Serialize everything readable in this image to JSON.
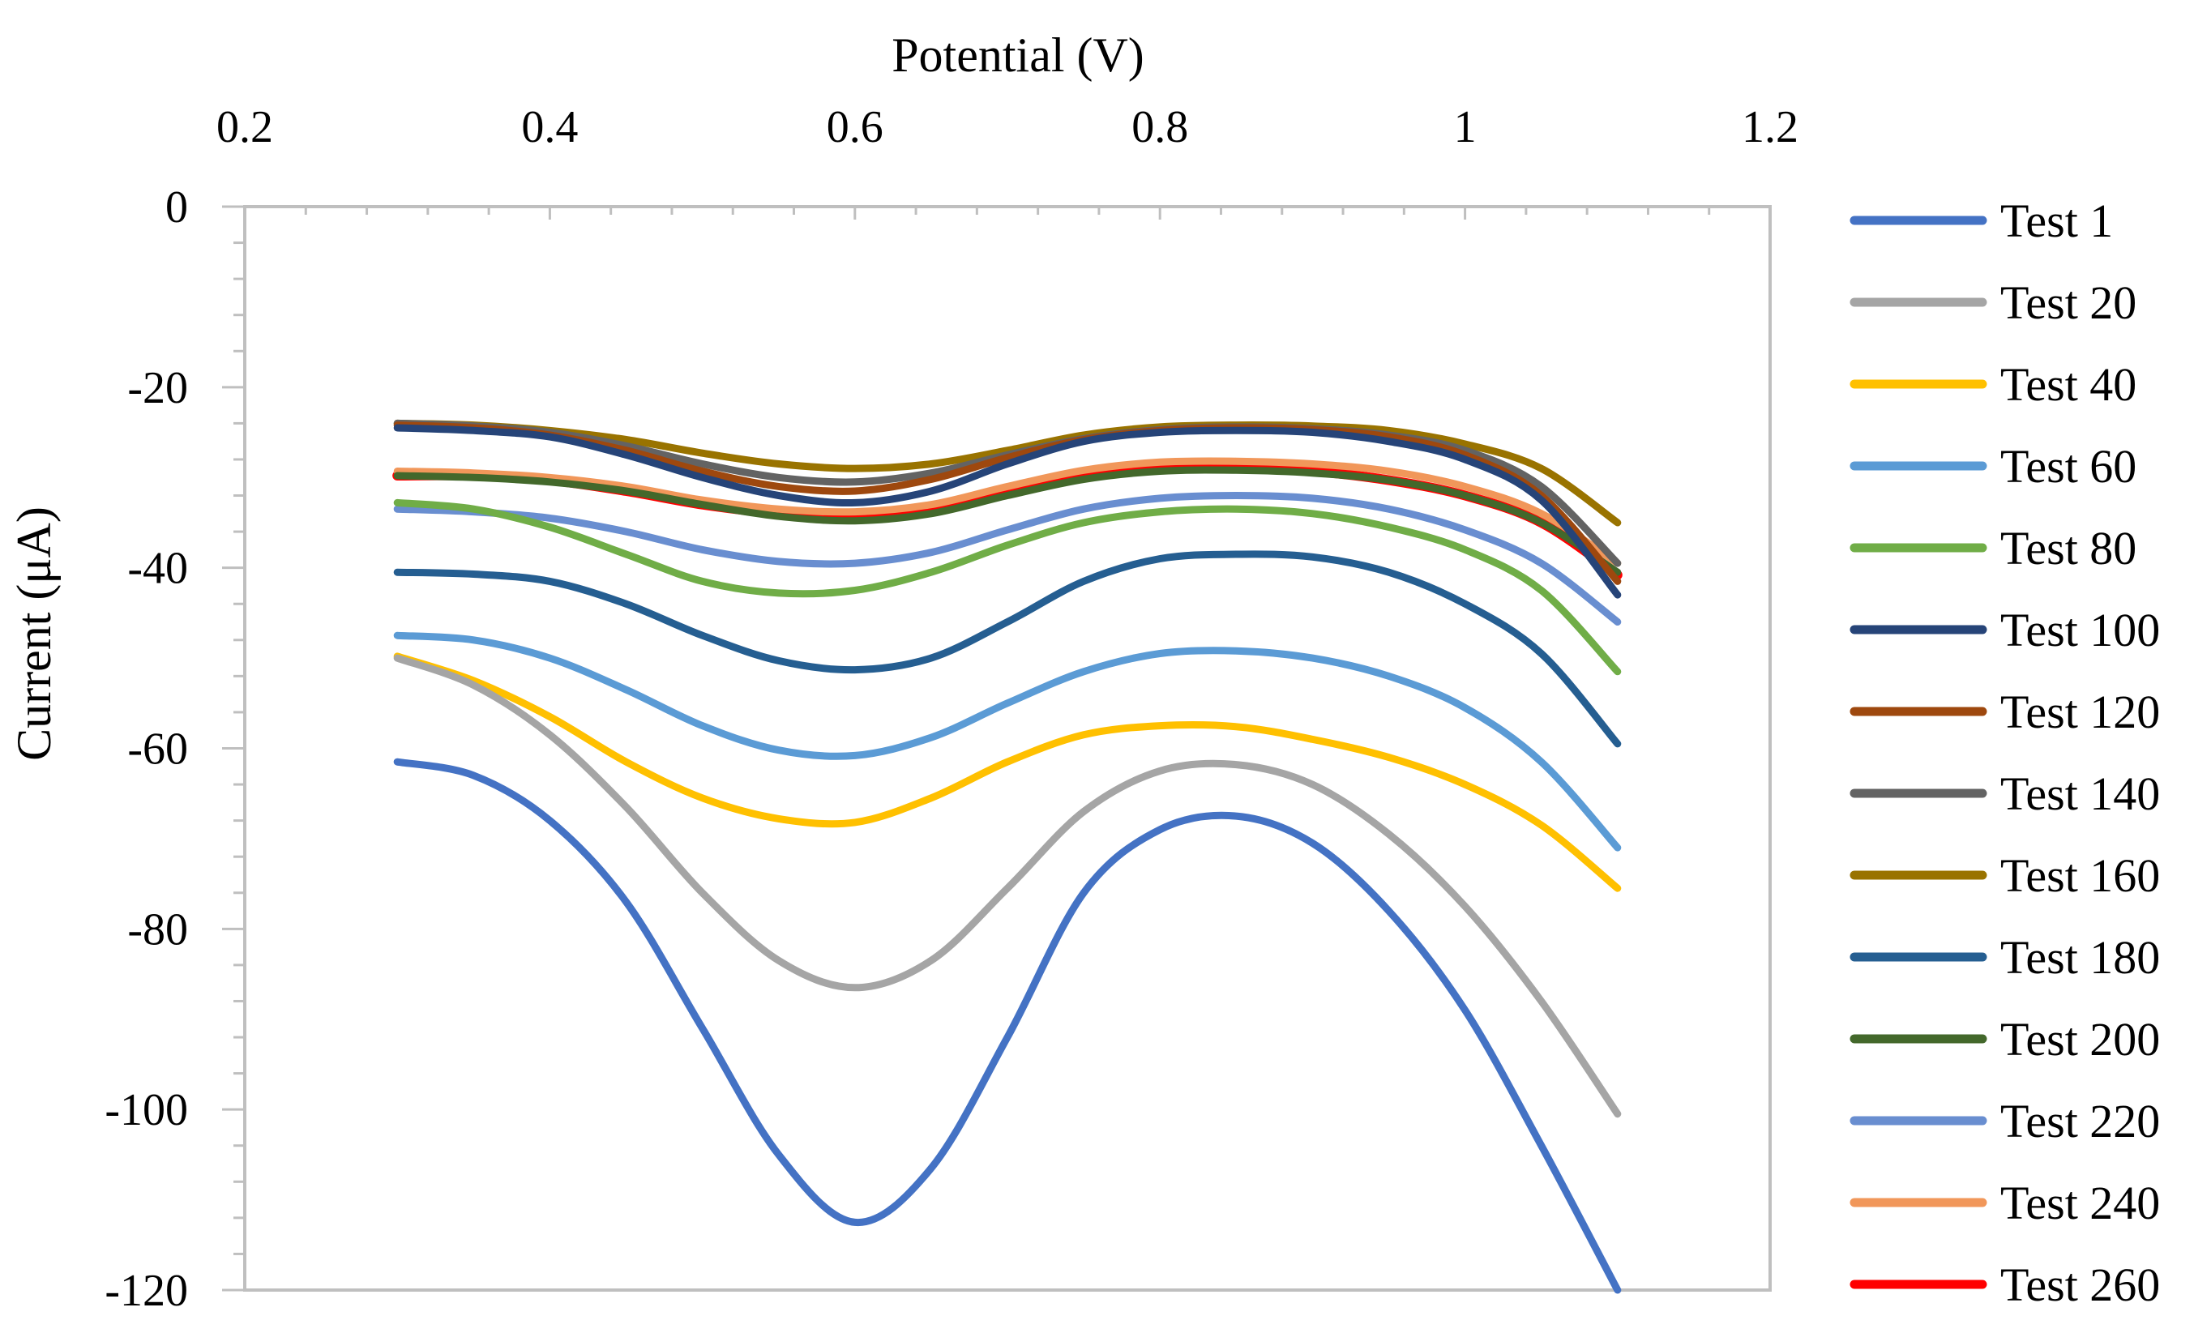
{
  "chart_data": {
    "type": "line",
    "xlabel": "Potential (V)",
    "ylabel": "Current (μA)",
    "xlim": [
      0.2,
      1.2
    ],
    "ylim": [
      -120,
      0
    ],
    "x_ticks": [
      "0.2",
      "0.4",
      "0.6",
      "0.8",
      "1",
      "1.2"
    ],
    "y_ticks": [
      "0",
      "-20",
      "-40",
      "-60",
      "-80",
      "-100",
      "-120"
    ],
    "x_axis_position": "top",
    "legend_position": "right",
    "grid": false,
    "x": [
      0.3,
      0.35,
      0.4,
      0.45,
      0.5,
      0.55,
      0.6,
      0.65,
      0.7,
      0.75,
      0.8,
      0.85,
      0.9,
      0.95,
      1.0,
      1.05,
      1.1
    ],
    "series": [
      {
        "name": "Test 1",
        "color": "#4472C4",
        "values": [
          -61.5,
          -63.0,
          -68.0,
          -77.0,
          -91.0,
          -105.0,
          -112.5,
          -106.5,
          -92.0,
          -76.0,
          -69.0,
          -67.5,
          -70.5,
          -78.0,
          -89.0,
          -104.0,
          -120.0
        ]
      },
      {
        "name": "Test 20",
        "color": "#A5A5A5",
        "values": [
          -50.0,
          -53.0,
          -58.5,
          -66.5,
          -76.0,
          -83.5,
          -86.5,
          -83.5,
          -75.5,
          -67.0,
          -62.5,
          -61.8,
          -64.0,
          -69.5,
          -77.5,
          -88.0,
          -100.5
        ]
      },
      {
        "name": "Test 40",
        "color": "#FFC000",
        "values": [
          -49.8,
          -52.5,
          -56.5,
          -61.5,
          -65.5,
          -67.8,
          -68.2,
          -65.5,
          -61.5,
          -58.5,
          -57.5,
          -57.6,
          -59.0,
          -61.0,
          -64.0,
          -68.5,
          -75.5
        ]
      },
      {
        "name": "Test 60",
        "color": "#5B9BD5",
        "values": [
          -47.5,
          -48.0,
          -50.0,
          -53.5,
          -57.5,
          -60.2,
          -60.8,
          -58.8,
          -55.0,
          -51.5,
          -49.5,
          -49.2,
          -50.0,
          -52.0,
          -55.5,
          -61.5,
          -71.0
        ]
      },
      {
        "name": "Test 80",
        "color": "#70AD47",
        "values": [
          -32.8,
          -33.5,
          -35.5,
          -38.5,
          -41.5,
          -42.8,
          -42.5,
          -40.5,
          -37.5,
          -35.0,
          -33.8,
          -33.5,
          -34.0,
          -35.5,
          -38.0,
          -42.5,
          -51.5
        ]
      },
      {
        "name": "Test 100",
        "color": "#264478",
        "values": [
          -24.5,
          -24.8,
          -25.5,
          -27.5,
          -30.0,
          -32.0,
          -32.8,
          -31.5,
          -28.5,
          -26.0,
          -25.0,
          -24.8,
          -25.0,
          -26.0,
          -28.0,
          -32.5,
          -43.0
        ]
      },
      {
        "name": "Test 120",
        "color": "#9E480E",
        "values": [
          -24.2,
          -24.5,
          -25.3,
          -27.0,
          -29.3,
          -31.0,
          -31.5,
          -30.2,
          -27.8,
          -25.8,
          -24.8,
          -24.5,
          -24.7,
          -25.5,
          -27.5,
          -32.0,
          -41.5
        ]
      },
      {
        "name": "Test 140",
        "color": "#636363",
        "values": [
          -24.0,
          -24.3,
          -25.0,
          -26.5,
          -28.5,
          -30.0,
          -30.5,
          -29.5,
          -27.5,
          -25.7,
          -24.7,
          -24.4,
          -24.6,
          -25.3,
          -27.0,
          -31.0,
          -39.5
        ]
      },
      {
        "name": "Test 160",
        "color": "#997300",
        "values": [
          -24.0,
          -24.2,
          -24.8,
          -25.8,
          -27.3,
          -28.5,
          -29.0,
          -28.5,
          -27.0,
          -25.3,
          -24.4,
          -24.2,
          -24.3,
          -24.8,
          -26.3,
          -29.0,
          -35.0
        ]
      },
      {
        "name": "Test 180",
        "color": "#255E91",
        "values": [
          -40.5,
          -40.7,
          -41.5,
          -44.0,
          -47.5,
          -50.3,
          -51.3,
          -50.0,
          -46.0,
          -41.5,
          -39.0,
          -38.5,
          -38.8,
          -40.5,
          -44.0,
          -49.5,
          -59.5
        ]
      },
      {
        "name": "Test 200",
        "color": "#43682B",
        "values": [
          -29.8,
          -30.0,
          -30.5,
          -31.5,
          -33.0,
          -34.3,
          -34.8,
          -34.0,
          -32.0,
          -30.2,
          -29.3,
          -29.2,
          -29.5,
          -30.3,
          -32.0,
          -35.0,
          -40.5
        ]
      },
      {
        "name": "Test 220",
        "color": "#698ED0",
        "values": [
          -33.5,
          -33.8,
          -34.5,
          -36.0,
          -38.0,
          -39.3,
          -39.5,
          -38.3,
          -35.8,
          -33.5,
          -32.3,
          -32.0,
          -32.3,
          -33.5,
          -35.8,
          -39.5,
          -46.0
        ]
      },
      {
        "name": "Test 240",
        "color": "#F1975A",
        "values": [
          -29.3,
          -29.5,
          -30.0,
          -31.0,
          -32.5,
          -33.5,
          -33.8,
          -33.0,
          -31.0,
          -29.2,
          -28.3,
          -28.2,
          -28.5,
          -29.3,
          -31.0,
          -34.0,
          -39.5
        ]
      },
      {
        "name": "Test 260",
        "color": "#FF0000",
        "values": [
          -29.8,
          -29.8,
          -30.3,
          -31.5,
          -33.0,
          -34.0,
          -34.3,
          -33.3,
          -31.3,
          -29.6,
          -28.9,
          -28.9,
          -29.3,
          -30.3,
          -32.0,
          -35.0,
          -40.8
        ]
      }
    ]
  }
}
